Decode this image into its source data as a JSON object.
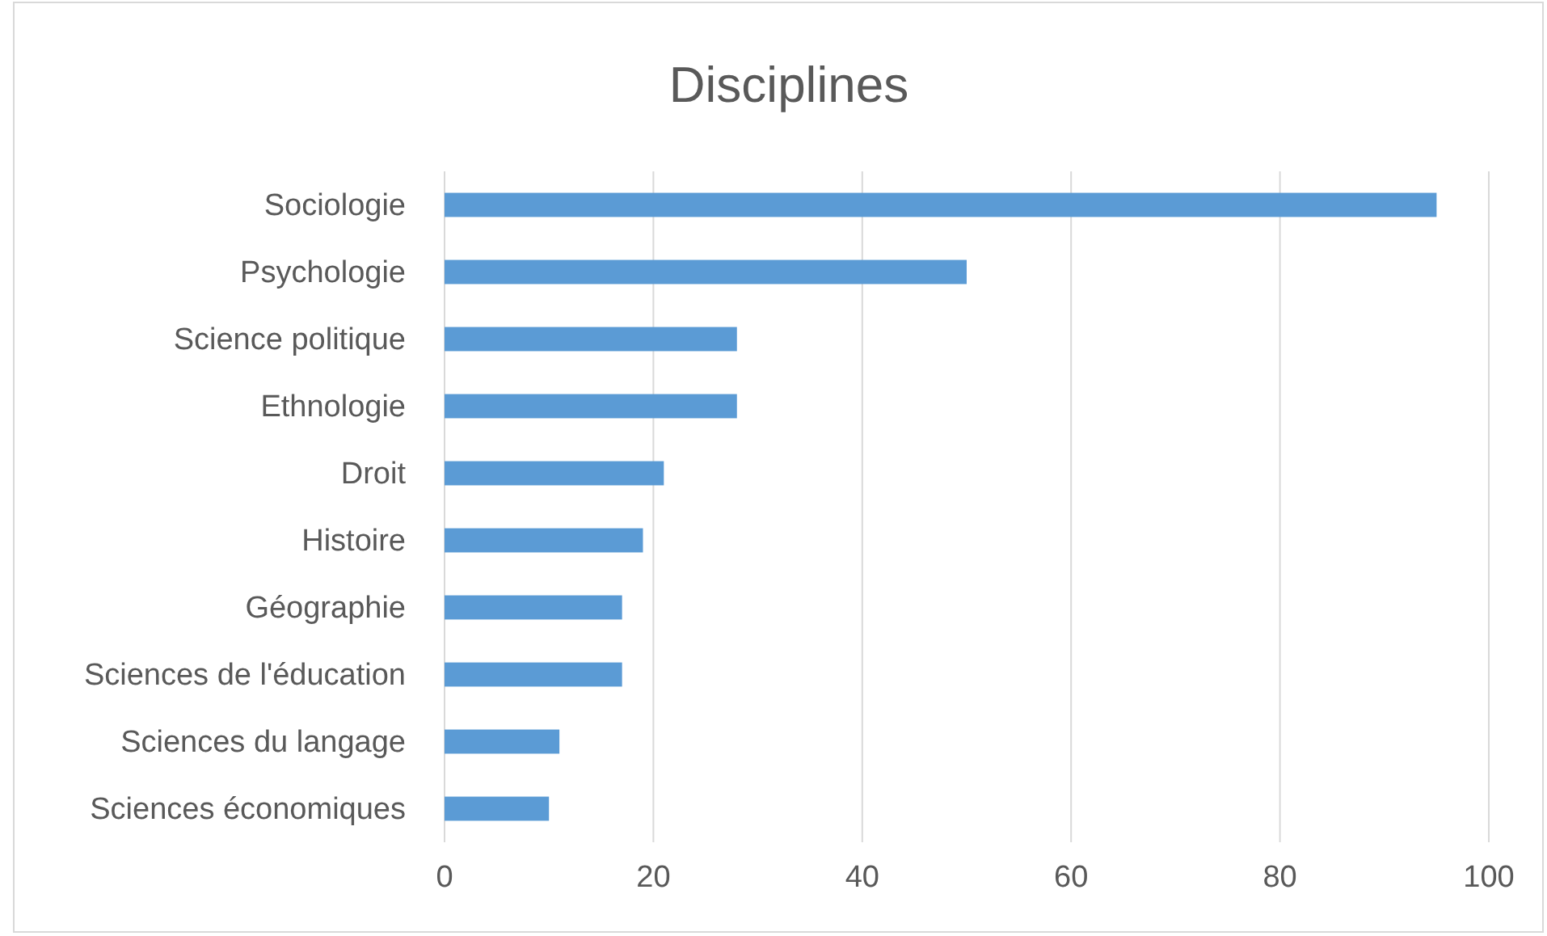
{
  "chart_data": {
    "type": "bar",
    "orientation": "horizontal",
    "title": "Disciplines",
    "categories": [
      "Sociologie",
      "Psychologie",
      "Science politique",
      "Ethnologie",
      "Droit",
      "Histoire",
      "Géographie",
      "Sciences de l'éducation",
      "Sciences du langage",
      "Sciences économiques"
    ],
    "values": [
      95,
      50,
      28,
      28,
      21,
      19,
      17,
      17,
      11,
      10
    ],
    "color": "#5b9bd5",
    "xlim": [
      0,
      100
    ],
    "xticks": [
      0,
      20,
      40,
      60,
      80,
      100
    ],
    "grid": "x"
  }
}
